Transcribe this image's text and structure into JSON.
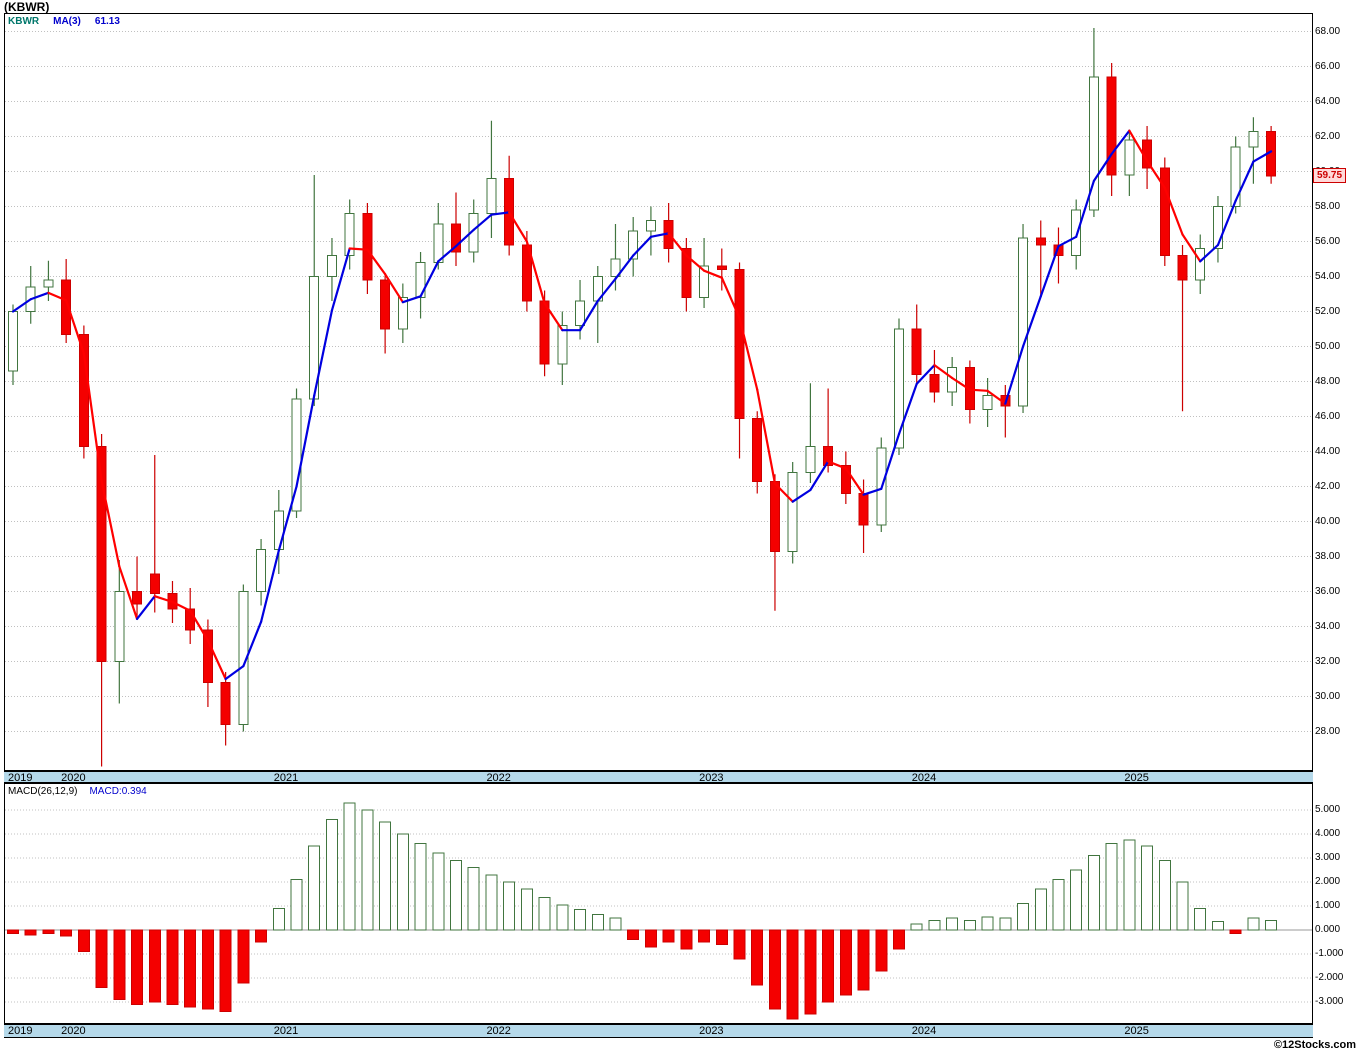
{
  "header": {
    "title": "(KBWR)"
  },
  "main_chart": {
    "legend": {
      "symbol": "KBWR",
      "ma_label": "MA(3)",
      "ma_value": "61.13"
    },
    "price_tag": "59.75",
    "y_ticks": [
      "68.00",
      "66.00",
      "64.00",
      "62.00",
      "60.00",
      "58.00",
      "56.00",
      "54.00",
      "52.00",
      "50.00",
      "48.00",
      "46.00",
      "44.00",
      "42.00",
      "40.00",
      "38.00",
      "36.00",
      "34.00",
      "32.00",
      "30.00",
      "28.00"
    ]
  },
  "macd_panel": {
    "legend": {
      "name": "MACD(26,12,9)",
      "value": "MACD:0.394"
    },
    "y_ticks": [
      "5.000",
      "4.000",
      "3.000",
      "2.000",
      "1.000",
      "0.000",
      "-1.000",
      "-2.000",
      "-3.000"
    ]
  },
  "x_axis": {
    "years": [
      {
        "label": "2019",
        "index": 0
      },
      {
        "label": "2020",
        "index": 3
      },
      {
        "label": "2021",
        "index": 15
      },
      {
        "label": "2022",
        "index": 27
      },
      {
        "label": "2023",
        "index": 39
      },
      {
        "label": "2024",
        "index": 51
      },
      {
        "label": "2025",
        "index": 63
      }
    ]
  },
  "footer": {
    "credit": "©12Stocks.com"
  },
  "colors": {
    "up_fill": "#ffffff",
    "up_stroke": "#41753f",
    "down_fill": "#f40000",
    "down_stroke": "#cc0000",
    "ma_up": "#0000e0",
    "ma_down": "#ff0000",
    "grid": "#c0c0c0",
    "zero_line": "#9a9a9a",
    "band_bg": "#b5d9ea",
    "tag_bg": "#ffd9d9",
    "tag_fg": "#cc0000",
    "legend_symbol": "#00776b",
    "legend_value": "#0000cc"
  },
  "chart_data": {
    "type": "candlestick",
    "title": "(KBWR)",
    "interval": "monthly",
    "price_axis": {
      "ylim": [
        25.8,
        69.0
      ],
      "tick_step": 2,
      "grid": true
    },
    "macd_axis": {
      "ylim": [
        -3.875,
        6.08
      ],
      "tick_step": 1,
      "grid": true
    },
    "overlay": {
      "name": "MA(3)",
      "period": 3,
      "current": 61.13,
      "style": "blue-when-rising-red-when-falling"
    },
    "indicator": {
      "name": "MACD(26,12,9)",
      "current": 0.394
    },
    "last_close": 59.75,
    "months": [
      "2019-10",
      "2019-11",
      "2019-12",
      "2020-01",
      "2020-02",
      "2020-03",
      "2020-04",
      "2020-05",
      "2020-06",
      "2020-07",
      "2020-08",
      "2020-09",
      "2020-10",
      "2020-11",
      "2020-12",
      "2021-01",
      "2021-02",
      "2021-03",
      "2021-04",
      "2021-05",
      "2021-06",
      "2021-07",
      "2021-08",
      "2021-09",
      "2021-10",
      "2021-11",
      "2021-12",
      "2022-01",
      "2022-02",
      "2022-03",
      "2022-04",
      "2022-05",
      "2022-06",
      "2022-07",
      "2022-08",
      "2022-09",
      "2022-10",
      "2022-11",
      "2022-12",
      "2023-01",
      "2023-02",
      "2023-03",
      "2023-04",
      "2023-05",
      "2023-06",
      "2023-07",
      "2023-08",
      "2023-09",
      "2023-10",
      "2023-11",
      "2023-12",
      "2024-01",
      "2024-02",
      "2024-03",
      "2024-04",
      "2024-05",
      "2024-06",
      "2024-07",
      "2024-08",
      "2024-09",
      "2024-10",
      "2024-11",
      "2024-12",
      "2025-01",
      "2025-02",
      "2025-03",
      "2025-04",
      "2025-05",
      "2025-06",
      "2025-07",
      "2025-08",
      "2025-09"
    ],
    "ohlc": [
      [
        48.6,
        52.4,
        47.8,
        52.0
      ],
      [
        52.0,
        54.6,
        51.3,
        53.4
      ],
      [
        53.4,
        54.9,
        52.6,
        53.8
      ],
      [
        53.8,
        55.0,
        50.2,
        50.7
      ],
      [
        50.7,
        51.2,
        43.6,
        44.3
      ],
      [
        44.3,
        45.0,
        26.0,
        32.0
      ],
      [
        32.0,
        37.8,
        29.6,
        36.0
      ],
      [
        36.0,
        38.0,
        34.4,
        35.3
      ],
      [
        37.0,
        43.8,
        34.8,
        35.9
      ],
      [
        35.9,
        36.6,
        34.2,
        35.0
      ],
      [
        35.0,
        36.2,
        33.0,
        33.8
      ],
      [
        33.8,
        34.4,
        29.4,
        30.8
      ],
      [
        30.8,
        31.4,
        27.2,
        28.4
      ],
      [
        28.4,
        36.4,
        28.0,
        36.0
      ],
      [
        36.0,
        39.0,
        35.2,
        38.4
      ],
      [
        38.4,
        41.8,
        37.0,
        40.6
      ],
      [
        40.6,
        47.6,
        40.2,
        47.0
      ],
      [
        47.0,
        59.8,
        46.6,
        54.0
      ],
      [
        54.0,
        56.2,
        52.6,
        55.2
      ],
      [
        55.2,
        58.4,
        54.4,
        57.6
      ],
      [
        57.6,
        58.2,
        53.0,
        53.8
      ],
      [
        53.8,
        54.2,
        49.6,
        51.0
      ],
      [
        51.0,
        53.6,
        50.2,
        52.8
      ],
      [
        52.8,
        55.4,
        51.6,
        54.8
      ],
      [
        54.8,
        58.2,
        54.4,
        57.0
      ],
      [
        57.0,
        58.8,
        54.6,
        55.4
      ],
      [
        55.4,
        58.4,
        54.8,
        57.6
      ],
      [
        57.6,
        62.9,
        56.2,
        59.6
      ],
      [
        59.6,
        60.9,
        55.2,
        55.8
      ],
      [
        55.8,
        56.6,
        52.0,
        52.6
      ],
      [
        52.6,
        53.2,
        48.3,
        49.0
      ],
      [
        49.0,
        52.0,
        47.8,
        51.2
      ],
      [
        51.2,
        53.8,
        50.4,
        52.6
      ],
      [
        52.6,
        54.6,
        50.2,
        54.0
      ],
      [
        54.0,
        57.0,
        53.2,
        55.0
      ],
      [
        55.0,
        57.4,
        54.0,
        56.6
      ],
      [
        56.6,
        58.0,
        55.2,
        57.2
      ],
      [
        57.2,
        58.2,
        54.8,
        55.6
      ],
      [
        55.6,
        56.2,
        52.0,
        52.8
      ],
      [
        52.8,
        56.2,
        52.2,
        54.6
      ],
      [
        54.6,
        55.6,
        53.2,
        54.4
      ],
      [
        54.4,
        54.8,
        43.6,
        45.9
      ],
      [
        45.9,
        46.3,
        41.6,
        42.3
      ],
      [
        42.3,
        42.7,
        34.9,
        38.3
      ],
      [
        38.3,
        43.4,
        37.6,
        42.8
      ],
      [
        42.8,
        47.9,
        42.2,
        44.3
      ],
      [
        44.3,
        47.6,
        42.8,
        43.2
      ],
      [
        43.2,
        44.0,
        41.0,
        41.6
      ],
      [
        41.6,
        42.4,
        38.2,
        39.8
      ],
      [
        39.8,
        44.8,
        39.4,
        44.2
      ],
      [
        44.2,
        51.6,
        43.8,
        51.0
      ],
      [
        51.0,
        52.4,
        47.8,
        48.4
      ],
      [
        48.4,
        49.8,
        46.8,
        47.4
      ],
      [
        47.4,
        49.4,
        46.6,
        48.8
      ],
      [
        48.8,
        49.2,
        45.6,
        46.4
      ],
      [
        46.4,
        48.2,
        45.4,
        47.2
      ],
      [
        47.2,
        47.8,
        44.8,
        46.6
      ],
      [
        46.6,
        57.0,
        46.2,
        56.2
      ],
      [
        56.2,
        57.2,
        52.8,
        55.8
      ],
      [
        55.8,
        56.8,
        53.6,
        55.2
      ],
      [
        55.2,
        58.4,
        54.4,
        57.8
      ],
      [
        57.8,
        68.2,
        57.4,
        65.4
      ],
      [
        65.4,
        66.2,
        58.6,
        59.8
      ],
      [
        59.8,
        62.4,
        58.6,
        61.8
      ],
      [
        61.8,
        62.6,
        59.0,
        60.2
      ],
      [
        60.2,
        60.8,
        54.6,
        55.2
      ],
      [
        55.2,
        55.8,
        46.3,
        53.8
      ],
      [
        53.8,
        56.4,
        53.0,
        55.6
      ],
      [
        55.6,
        58.6,
        54.8,
        58.0
      ],
      [
        58.0,
        62.0,
        57.6,
        61.4
      ],
      [
        61.4,
        63.1,
        59.3,
        62.3
      ],
      [
        62.3,
        62.6,
        59.3,
        59.75
      ]
    ],
    "macd_histogram": [
      -0.15,
      -0.2,
      -0.15,
      -0.25,
      -0.9,
      -2.4,
      -2.9,
      -3.1,
      -3.0,
      -3.1,
      -3.2,
      -3.3,
      -3.4,
      -2.2,
      -0.5,
      0.9,
      2.1,
      3.5,
      4.6,
      5.3,
      5.0,
      4.5,
      4.0,
      3.6,
      3.2,
      2.9,
      2.6,
      2.3,
      2.0,
      1.7,
      1.35,
      1.05,
      0.85,
      0.65,
      0.5,
      -0.4,
      -0.7,
      -0.5,
      -0.8,
      -0.5,
      -0.6,
      -1.2,
      -2.3,
      -3.3,
      -3.7,
      -3.5,
      -3.0,
      -2.7,
      -2.5,
      -1.7,
      -0.8,
      0.25,
      0.4,
      0.5,
      0.4,
      0.55,
      0.5,
      1.1,
      1.7,
      2.1,
      2.5,
      3.1,
      3.6,
      3.75,
      3.5,
      2.9,
      2.0,
      0.9,
      0.35,
      -0.15,
      0.5,
      0.394
    ]
  }
}
